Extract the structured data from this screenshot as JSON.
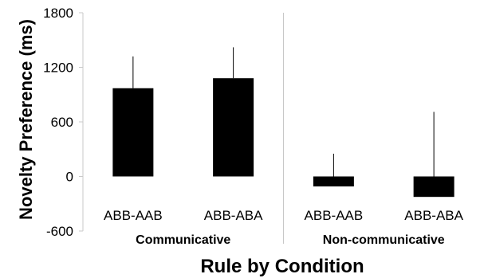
{
  "chart_data": {
    "type": "bar",
    "title": "",
    "xlabel": "Rule by Condition",
    "ylabel": "Novelty Preference (ms)",
    "ylim": [
      -600,
      1800
    ],
    "yticks": [
      -600,
      0,
      600,
      1200,
      1800
    ],
    "ytick_labels": [
      "-600",
      "0",
      "600",
      "1200",
      "1800"
    ],
    "grid": false,
    "groups": [
      {
        "name": "Communicative",
        "categories": [
          "ABB-AAB",
          "ABB-ABA"
        ]
      },
      {
        "name": "Non-communicative",
        "categories": [
          "ABB-AAB",
          "ABB-ABA"
        ]
      }
    ],
    "categories": [
      "ABB-AAB",
      "ABB-ABA",
      "ABB-AAB",
      "ABB-ABA"
    ],
    "values": [
      970,
      1080,
      -110,
      -225
    ],
    "error_bar_upper": [
      1320,
      1420,
      250,
      710
    ],
    "bar_color": "#000000",
    "axis_color": "#c8c8c8"
  }
}
